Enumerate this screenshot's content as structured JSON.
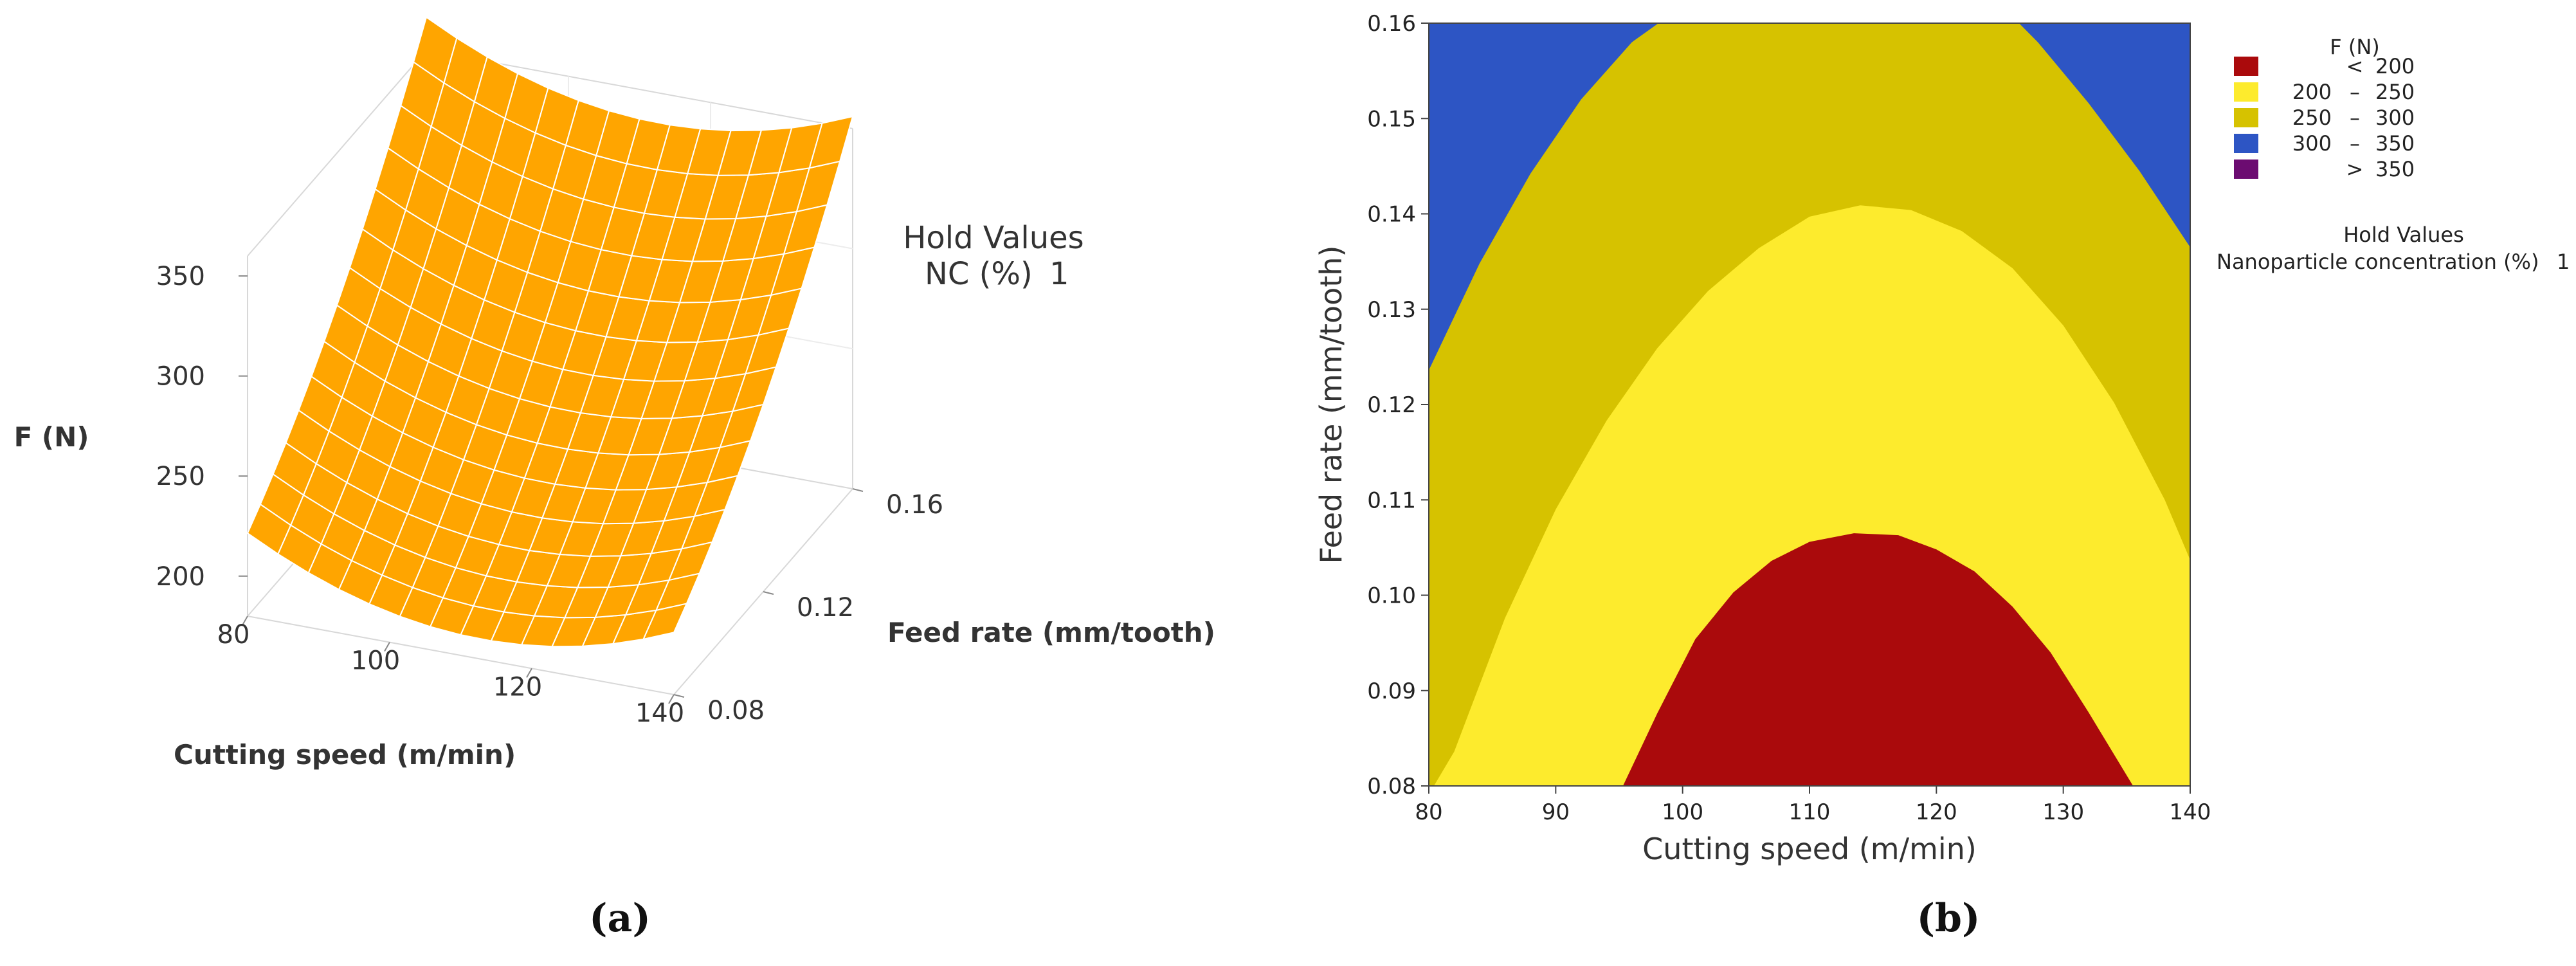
{
  "captions": {
    "a": "(a)",
    "b": "(b)"
  },
  "chart_data": [
    {
      "type": "surface",
      "title": "",
      "zlabel": "F (N)",
      "xlabel": "Cutting speed (m/min)",
      "ylabel": "Feed rate (mm/tooth)",
      "x_ticks": [
        "80",
        "100",
        "120",
        "140"
      ],
      "y_ticks": [
        "0.08",
        "0.12",
        "0.16"
      ],
      "z_ticks": [
        "200",
        "250",
        "300",
        "350"
      ],
      "xlim": [
        80,
        140
      ],
      "ylim": [
        0.08,
        0.16
      ],
      "zlim": [
        180,
        360
      ],
      "surface_color": "#ffa500",
      "grid_color": "#ffffff",
      "hold_values": {
        "title": "Hold Values",
        "label": "NC (%)",
        "value": "1"
      }
    },
    {
      "type": "contour",
      "title": "",
      "xlabel": "Cutting speed (m/min)",
      "ylabel": "Feed rate (mm/tooth)",
      "x_ticks": [
        "80",
        "90",
        "100",
        "110",
        "120",
        "130",
        "140"
      ],
      "y_ticks": [
        "0.08",
        "0.09",
        "0.10",
        "0.11",
        "0.12",
        "0.13",
        "0.14",
        "0.15",
        "0.16"
      ],
      "xlim": [
        80,
        140
      ],
      "ylim": [
        0.08,
        0.16
      ],
      "legend_title": "F (N)",
      "legend": [
        {
          "lo": "",
          "sep": "<",
          "hi": "200",
          "color": "#aa0a0c"
        },
        {
          "lo": "200",
          "sep": "–",
          "hi": "250",
          "color": "#fdeb2d"
        },
        {
          "lo": "250",
          "sep": "–",
          "hi": "300",
          "color": "#d6c200"
        },
        {
          "lo": "300",
          "sep": "–",
          "hi": "350",
          "color": "#2d55c4"
        },
        {
          "lo": "",
          "sep": ">",
          "hi": "350",
          "color": "#6c0c71"
        }
      ],
      "boundaries": [
        {
          "level": 200,
          "x": [
            95.3,
            98,
            101,
            104,
            107,
            110,
            113.5,
            117,
            120,
            123,
            126,
            129,
            132,
            135.5
          ],
          "y": [
            0.08,
            0.0876,
            0.0954,
            0.1003,
            0.1036,
            0.1056,
            0.1065,
            0.1063,
            0.1048,
            0.1025,
            0.0988,
            0.094,
            0.0877,
            0.08
          ]
        },
        {
          "level": 250,
          "x": [
            80.4,
            82,
            86,
            90,
            94,
            98,
            102,
            106,
            110,
            114,
            118,
            122,
            126,
            130,
            134,
            138,
            140
          ],
          "y": [
            0.08,
            0.0836,
            0.0976,
            0.109,
            0.1183,
            0.1259,
            0.1319,
            0.1364,
            0.1397,
            0.1409,
            0.1404,
            0.1382,
            0.1343,
            0.1283,
            0.1202,
            0.11,
            0.1037
          ]
        },
        {
          "level": 300,
          "x": [
            80,
            84,
            88,
            92,
            96,
            100,
            101.5,
            124.5,
            128,
            132,
            136,
            140
          ],
          "y": [
            0.1236,
            0.1348,
            0.1442,
            0.152,
            0.158,
            0.1618,
            0.1625,
            0.1627,
            0.158,
            0.1516,
            0.1445,
            0.1365
          ]
        }
      ],
      "hold_values": {
        "title": "Hold Values",
        "label": "Nanoparticle concentration (%)",
        "value": "1"
      }
    }
  ]
}
